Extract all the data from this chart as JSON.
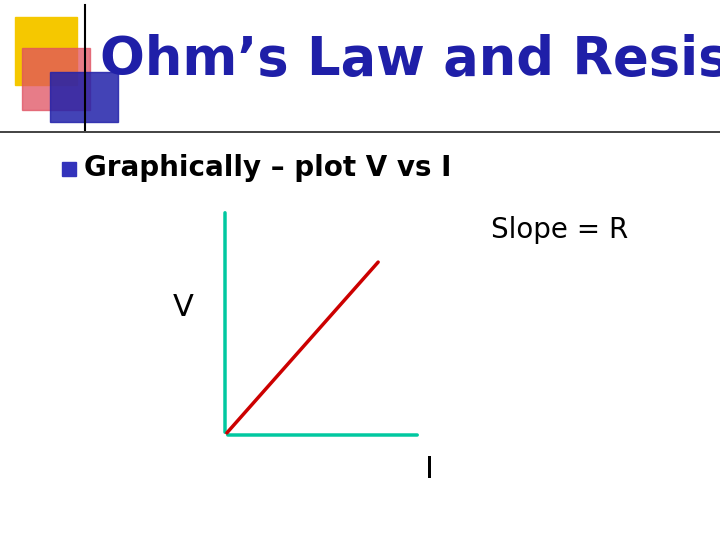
{
  "background_color": "#ffffff",
  "title": "Ohm’s Law and Resistance",
  "title_color": "#1f1fa8",
  "title_fontsize": 38,
  "bullet_text": "Graphically – plot V vs I",
  "bullet_fontsize": 20,
  "bullet_color": "#000000",
  "bullet_marker_color": "#3333bb",
  "v_label": "V",
  "i_label": "I",
  "slope_label": "Slope = R",
  "axis_color": "#00c8a0",
  "line_color": "#cc0000",
  "label_fontsize": 22,
  "slope_fontsize": 20,
  "deco_yellow": "#f5c800",
  "deco_pink": "#e05060",
  "deco_blue": "#2222aa",
  "separator_color": "#222222",
  "graph_ox": 0.31,
  "graph_oy": 0.155,
  "graph_ytop": 0.64,
  "graph_xright": 0.58
}
